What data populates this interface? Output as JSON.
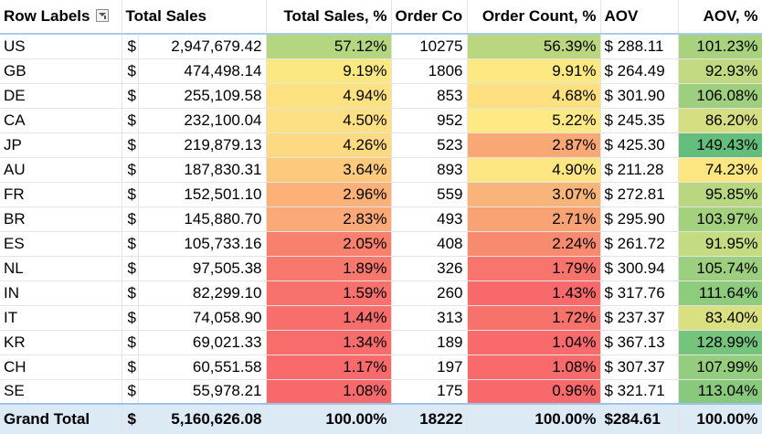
{
  "headers": {
    "row_labels": "Row Labels",
    "total_sales": "Total Sales",
    "total_sales_pct": "Total Sales, %",
    "order_count": "Order Co",
    "order_count_pct": "Order Count, %",
    "aov": "AOV",
    "aov_pct": "AOV, %"
  },
  "currency_symbol": "$",
  "rows": [
    {
      "label": "US",
      "sales": "2,947,679.42",
      "sales_pct": "57.12%",
      "orders": "10275",
      "orders_pct": "56.39%",
      "aov": "$ 288.11",
      "aov_pct": "101.23%",
      "c1": "#b5d680",
      "c2": "#bad780",
      "c3": "#a9d27f"
    },
    {
      "label": "GB",
      "sales": "474,498.14",
      "sales_pct": "9.19%",
      "orders": "1806",
      "orders_pct": "9.91%",
      "aov": "$ 264.49",
      "aov_pct": "92.93%",
      "c1": "#fce883",
      "c2": "#fde882",
      "c3": "#c1da81"
    },
    {
      "label": "DE",
      "sales": "255,109.58",
      "sales_pct": "4.94%",
      "orders": "853",
      "orders_pct": "4.68%",
      "aov": "$ 301.90",
      "aov_pct": "106.08%",
      "c1": "#fee282",
      "c2": "#fee081",
      "c3": "#9dcf7e"
    },
    {
      "label": "CA",
      "sales": "232,100.04",
      "sales_pct": "4.50%",
      "orders": "952",
      "orders_pct": "5.22%",
      "aov": "$ 245.35",
      "aov_pct": "86.20%",
      "c1": "#fde083",
      "c2": "#ffe984",
      "c3": "#d5df82"
    },
    {
      "label": "JP",
      "sales": "219,879.13",
      "sales_pct": "4.26%",
      "orders": "523",
      "orders_pct": "2.87%",
      "aov": "$ 425.30",
      "aov_pct": "149.43%",
      "c1": "#fdd982",
      "c2": "#f9a775",
      "c3": "#63be7b"
    },
    {
      "label": "AU",
      "sales": "187,830.31",
      "sales_pct": "3.64%",
      "orders": "893",
      "orders_pct": "4.90%",
      "aov": "$ 211.28",
      "aov_pct": "74.23%",
      "c1": "#fdc97d",
      "c2": "#ffe684",
      "c3": "#fbe682"
    },
    {
      "label": "FR",
      "sales": "152,501.10",
      "sales_pct": "2.96%",
      "orders": "559",
      "orders_pct": "3.07%",
      "aov": "$ 272.81",
      "aov_pct": "95.85%",
      "c1": "#fbb177",
      "c2": "#f9b479",
      "c3": "#b8d780"
    },
    {
      "label": "BR",
      "sales": "145,880.70",
      "sales_pct": "2.83%",
      "orders": "493",
      "orders_pct": "2.71%",
      "aov": "$ 295.90",
      "aov_pct": "103.97%",
      "c1": "#fba976",
      "c2": "#f9a374",
      "c3": "#a4d17e"
    },
    {
      "label": "ES",
      "sales": "105,733.16",
      "sales_pct": "2.05%",
      "orders": "408",
      "orders_pct": "2.24%",
      "aov": "$ 261.72",
      "aov_pct": "91.95%",
      "c1": "#f8816e",
      "c2": "#f88a70",
      "c3": "#c4db81"
    },
    {
      "label": "NL",
      "sales": "97,505.38",
      "sales_pct": "1.89%",
      "orders": "326",
      "orders_pct": "1.79%",
      "aov": "$ 300.94",
      "aov_pct": "105.74%",
      "c1": "#f8786d",
      "c2": "#f8746c",
      "c3": "#9ccf7e"
    },
    {
      "label": "IN",
      "sales": "82,299.10",
      "sales_pct": "1.59%",
      "orders": "260",
      "orders_pct": "1.43%",
      "aov": "$ 317.76",
      "aov_pct": "111.64%",
      "c1": "#f8716c",
      "c2": "#f8696b",
      "c3": "#8dcb7d"
    },
    {
      "label": "IT",
      "sales": "74,058.90",
      "sales_pct": "1.44%",
      "orders": "313",
      "orders_pct": "1.72%",
      "aov": "$ 237.37",
      "aov_pct": "83.40%",
      "c1": "#f86e6c",
      "c2": "#f8726c",
      "c3": "#d9e082"
    },
    {
      "label": "KR",
      "sales": "69,021.33",
      "sales_pct": "1.34%",
      "orders": "189",
      "orders_pct": "1.04%",
      "aov": "$ 367.13",
      "aov_pct": "128.99%",
      "c1": "#f86c6b",
      "c2": "#f86a6b",
      "c3": "#74c47c"
    },
    {
      "label": "CH",
      "sales": "60,551.58",
      "sales_pct": "1.17%",
      "orders": "197",
      "orders_pct": "1.08%",
      "aov": "$ 307.37",
      "aov_pct": "107.99%",
      "c1": "#f86a6b",
      "c2": "#f86a6b",
      "c3": "#95cd7e"
    },
    {
      "label": "SE",
      "sales": "55,978.21",
      "sales_pct": "1.08%",
      "orders": "175",
      "orders_pct": "0.96%",
      "aov": "$ 321.71",
      "aov_pct": "113.04%",
      "c1": "#f8696b",
      "c2": "#f8696b",
      "c3": "#88c97d"
    }
  ],
  "grand_total": {
    "label": "Grand Total",
    "sales": "5,160,626.08",
    "sales_pct": "100.00%",
    "orders": "18222",
    "orders_pct": "100.00%",
    "aov": "$284.61",
    "aov_pct": "100.00%"
  },
  "icons": {
    "filter": "filter-dropdown-icon"
  }
}
